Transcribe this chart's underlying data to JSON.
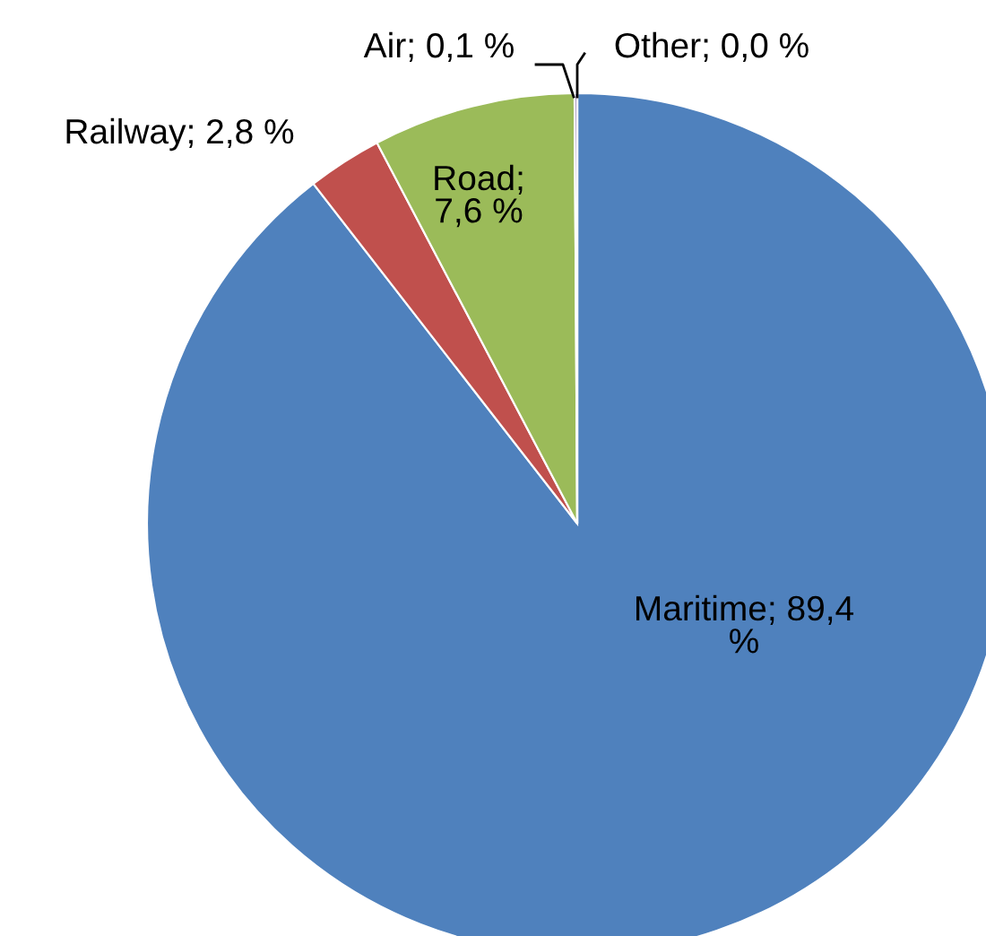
{
  "chart_data": {
    "type": "pie",
    "categories": [
      "Maritime",
      "Railway",
      "Road",
      "Air",
      "Other"
    ],
    "values": [
      89.4,
      2.8,
      7.6,
      0.1,
      0.0
    ],
    "colors": [
      "#4f81bd",
      "#c0504d",
      "#9bbb59",
      "#8064a2",
      "#4bacc6"
    ],
    "value_labels": [
      "; 89,4 %",
      "; 2,8 %",
      "; 7,6 %",
      "; 0,1 %",
      "; 0,0 %"
    ],
    "legend": false
  }
}
